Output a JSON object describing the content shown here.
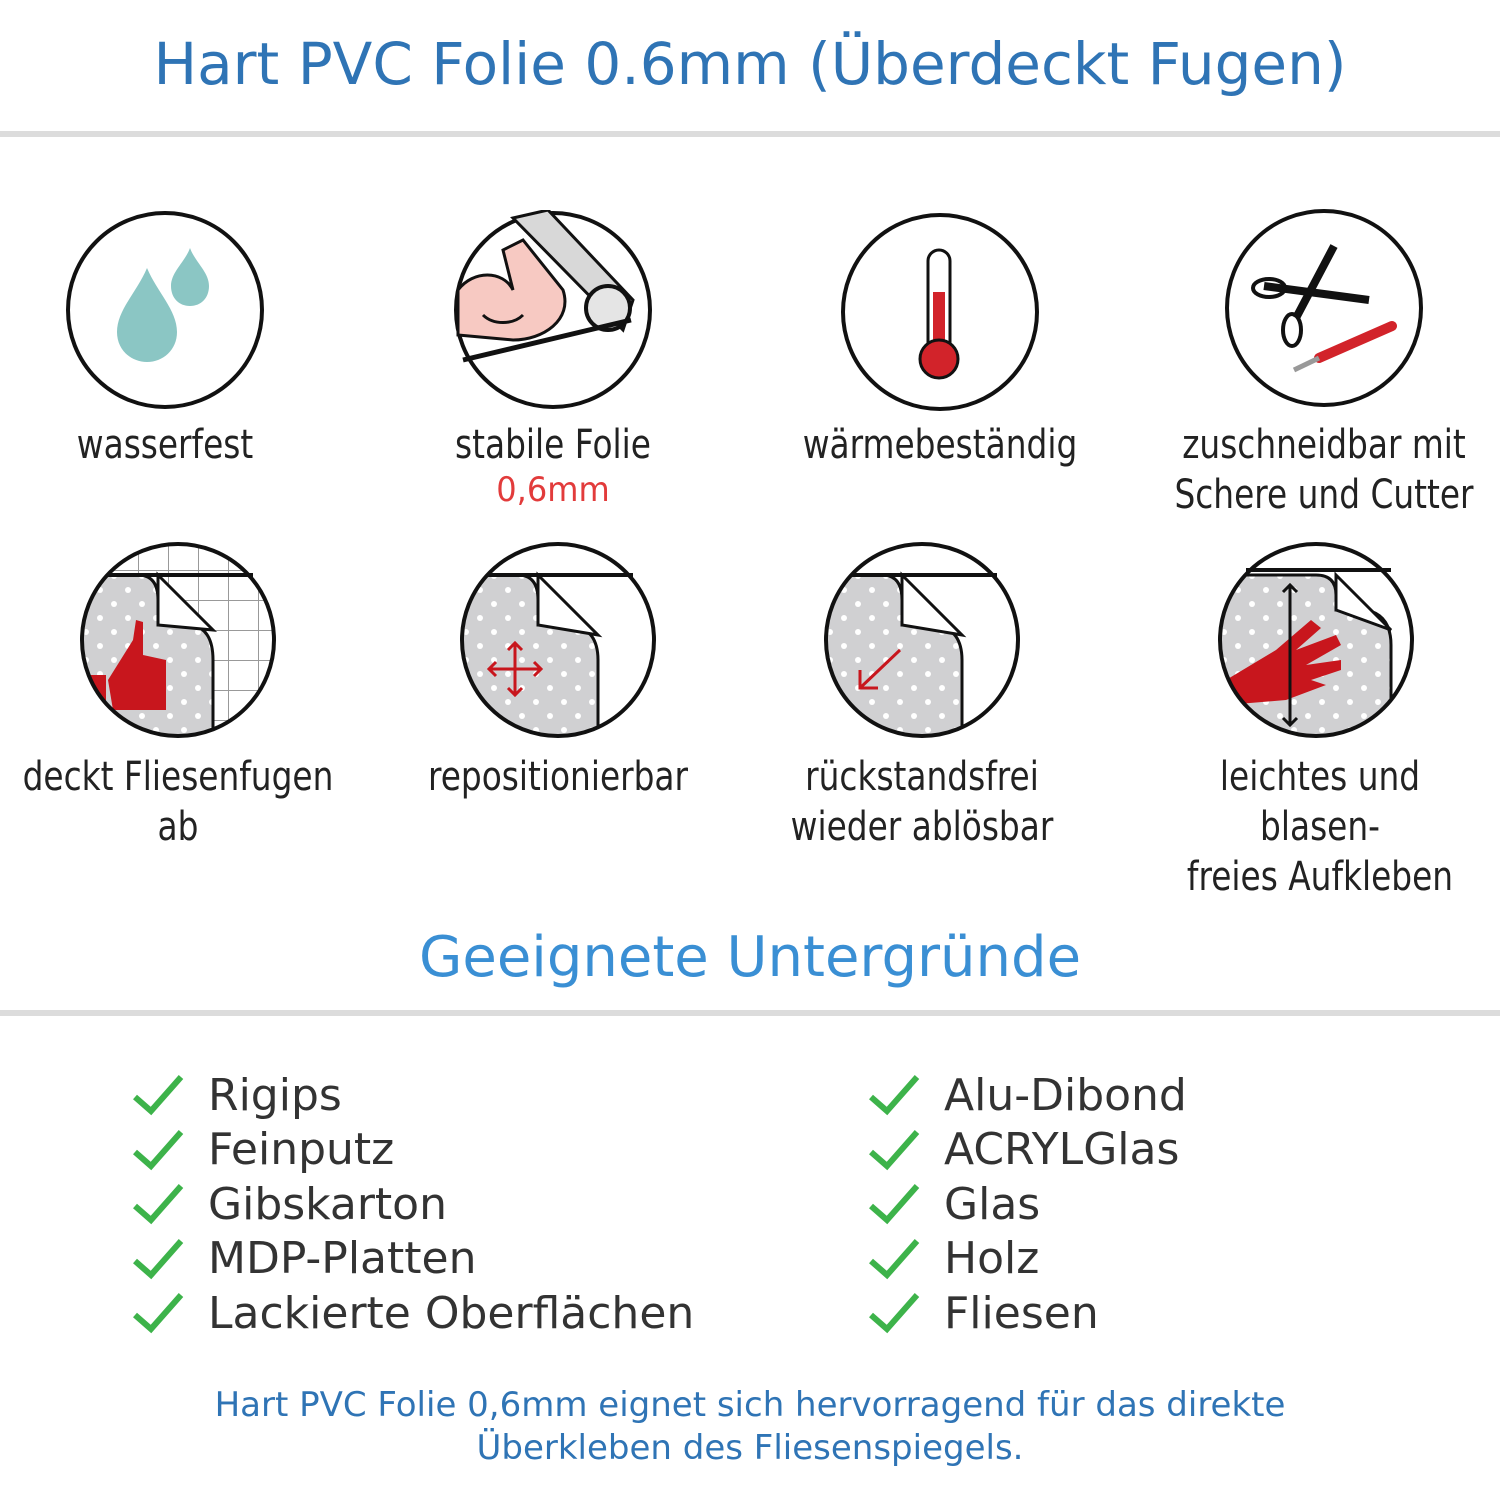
{
  "header": {
    "title": "Hart PVC Folie 0.6mm (Überdeckt Fugen)"
  },
  "features": [
    {
      "icon": "water-drops-icon",
      "label": "wasserfest"
    },
    {
      "icon": "strong-arm-icon",
      "label": "stabile Folie",
      "sub": "0,6mm"
    },
    {
      "icon": "thermometer-icon",
      "label": "wärmebeständig"
    },
    {
      "icon": "scissors-cutter-icon",
      "label_lines": [
        "zuschneidbar mit",
        "Schere und Cutter"
      ]
    },
    {
      "icon": "thumbs-up-tiles-icon",
      "label": "deckt Fliesenfugen ab"
    },
    {
      "icon": "move-arrows-icon",
      "label": "repositionierbar"
    },
    {
      "icon": "peel-arrow-icon",
      "label_lines": [
        "rückstandsfrei",
        "wieder ablösbar"
      ]
    },
    {
      "icon": "hand-smooth-icon",
      "label_lines": [
        "leichtes und blasen-",
        "freies Aufkleben"
      ]
    }
  ],
  "surfaces": {
    "title": "Geeignete Untergründe",
    "left": [
      "Rigips",
      "Feinputz",
      "Gibskarton",
      "MDP-Platten",
      "Lackierte Oberflächen"
    ],
    "right": [
      "Alu-Dibond",
      "ACRYLGlas",
      "Glas",
      "Holz",
      "Fliesen"
    ]
  },
  "footer": {
    "lines": [
      "Hart PVC Folie 0,6mm eignet sich hervorragend für das direkte",
      "Überkleben des Fliesenspiegels."
    ]
  },
  "colors": {
    "title": "#2f74b5",
    "subtitle": "#3a8fd4",
    "accent_red": "#e23b3b",
    "check": "#3db34a",
    "icon_red": "#c8161d",
    "drop": "#8bc6c4"
  }
}
